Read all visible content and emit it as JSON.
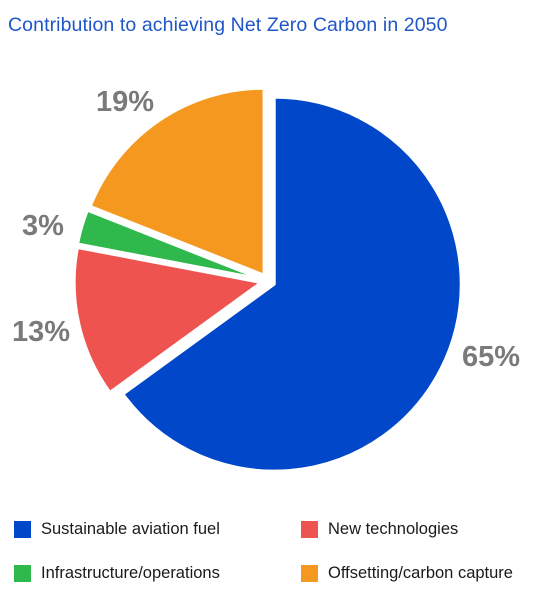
{
  "title": "Contribution to achieving Net Zero Carbon in 2050",
  "chart_data": {
    "type": "pie",
    "title": "Contribution to achieving Net Zero Carbon in 2050",
    "slices": [
      {
        "label": "Sustainable aviation fuel",
        "value": 65,
        "display": "65%",
        "color": "#0047c9"
      },
      {
        "label": "New technologies",
        "value": 13,
        "display": "13%",
        "color": "#ef5350"
      },
      {
        "label": "Infrastructure/operations",
        "value": 3,
        "display": "3%",
        "color": "#2fb84c"
      },
      {
        "label": "Offsetting/carbon capture",
        "value": 19,
        "display": "19%",
        "color": "#f5981f"
      }
    ],
    "start_angle_deg": 0,
    "direction": "clockwise",
    "exploded": true,
    "legend_position": "bottom"
  }
}
